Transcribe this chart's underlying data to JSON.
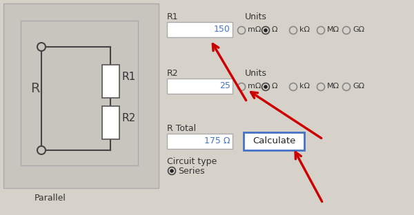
{
  "bg_color": "#d6d2ca",
  "panel_bg": "#c8c5be",
  "white": "#ffffff",
  "blue_text": "#4472c4",
  "dark_text": "#222222",
  "red_arrow": "#cc0000",
  "button_border": "#4472c4",
  "r1_val": "150",
  "r2_val": "25",
  "rtotal_val": "175 Ω",
  "r1_label": "R1",
  "r2_label": "R2",
  "rtotal_label": "R Total",
  "units_label": "Units",
  "calc_btn": "Calculate",
  "circuit_type_label": "Circuit type",
  "series_label": "Series",
  "parallel_label": "Parallel",
  "units_options": [
    "mΩ",
    "Ω",
    "kΩ",
    "MΩ",
    "GΩ"
  ],
  "r_label": "R",
  "r1_circuit": "R1",
  "r2_circuit": "R2",
  "figw": 6.0,
  "figh": 3.12,
  "dpi": 100
}
